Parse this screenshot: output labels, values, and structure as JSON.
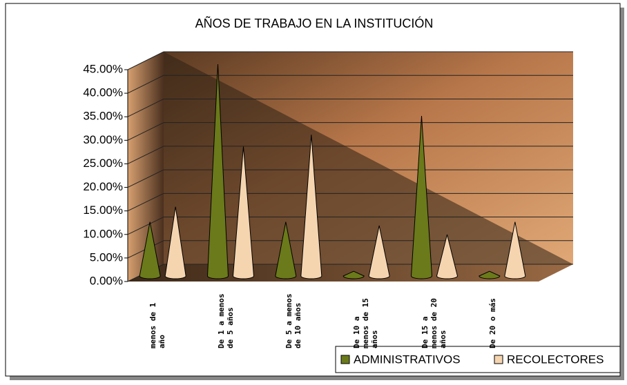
{
  "chart_data": {
    "type": "cone",
    "title": "AÑOS DE TRABAJO EN LA INSTITUCIÓN",
    "categories": [
      "menos de 1 año",
      "De 1 a menos de 5 años",
      "De 5 a menos de 10 años",
      "De 10 a menos de 15 años",
      "De 15 a menos de 20 años",
      "De 20 o más"
    ],
    "series": [
      {
        "name": "ADMINISTRATIVOS",
        "color": "#6b7a1a",
        "values": [
          11.5,
          45,
          11.5,
          1,
          34,
          1
        ]
      },
      {
        "name": "RECOLECTORES",
        "color": "#f5d5b0",
        "values": [
          14.7,
          27.5,
          30,
          10.7,
          8.8,
          11.5
        ]
      }
    ],
    "ylim": [
      0,
      45
    ],
    "yticks": [
      {
        "value": 0,
        "label": "0.00%"
      },
      {
        "value": 5,
        "label": "5.00%"
      },
      {
        "value": 10,
        "label": "10.00%"
      },
      {
        "value": 15,
        "label": "15.00%"
      },
      {
        "value": 20,
        "label": "20.00%"
      },
      {
        "value": 25,
        "label": "25.00%"
      },
      {
        "value": 30,
        "label": "30.00%"
      },
      {
        "value": 35,
        "label": "35.00%"
      },
      {
        "value": 40,
        "label": "40.00%"
      },
      {
        "value": 45,
        "label": "45.00%"
      }
    ],
    "grid": true,
    "legend": "bottom-right"
  }
}
